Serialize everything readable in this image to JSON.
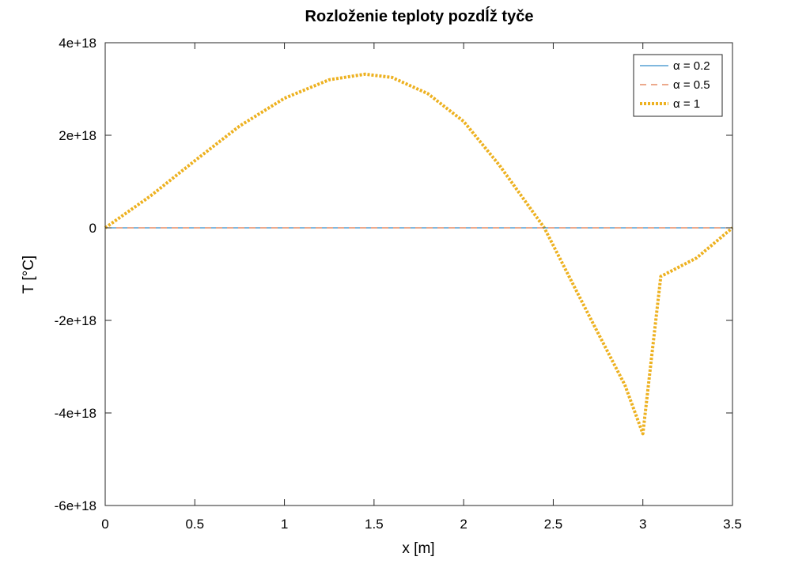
{
  "chart_data": {
    "type": "line",
    "title": "Rozloženie teploty pozdĺž tyče",
    "xlabel": "x [m]",
    "ylabel": "T [°C]",
    "xlim": [
      0,
      3.5
    ],
    "ylim": [
      -6e+18,
      4e+18
    ],
    "x_ticks": [
      0,
      0.5,
      1,
      1.5,
      2,
      2.5,
      3,
      3.5
    ],
    "x_tick_labels": [
      "0",
      "0.5",
      "1",
      "1.5",
      "2",
      "2.5",
      "3",
      "3.5"
    ],
    "y_ticks": [
      4e+18,
      2e+18,
      0,
      -2e+18,
      -4e+18,
      -6e+18
    ],
    "y_tick_labels": [
      "4e+18",
      "2e+18",
      "0",
      "-2e+18",
      "-4e+18",
      "-6e+18"
    ],
    "grid": false,
    "legend_position": "top-right",
    "series": [
      {
        "name": "α = 0.2",
        "color": "#0072bd",
        "style": "solid",
        "x": [
          0,
          3.5
        ],
        "y": [
          0,
          0
        ]
      },
      {
        "name": "α = 0.5",
        "color": "#d95319",
        "style": "dashed",
        "x": [
          0,
          3.5
        ],
        "y": [
          0,
          0
        ]
      },
      {
        "name": "α = 1",
        "color": "#edb120",
        "style": "dotted-thick",
        "x": [
          0,
          0.25,
          0.5,
          0.75,
          1.0,
          1.25,
          1.45,
          1.6,
          1.8,
          2.0,
          2.2,
          2.45,
          2.7,
          2.9,
          3.0,
          3.1,
          3.3,
          3.5
        ],
        "y": [
          0,
          6.8e+17,
          1.45e+18,
          2.2e+18,
          2.8e+18,
          3.2e+18,
          3.32e+18,
          3.25e+18,
          2.9e+18,
          2.3e+18,
          1.35e+18,
          0,
          -1.9e+18,
          -3.4e+18,
          -4.45e+18,
          -1.05e+18,
          -6.5e+17,
          0
        ]
      }
    ]
  }
}
